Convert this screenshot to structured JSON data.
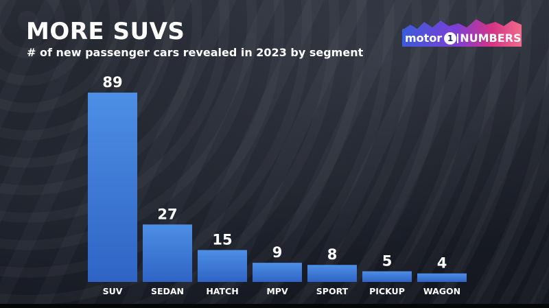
{
  "header": {
    "title": "MORE SUVS",
    "subtitle": "# of new passenger cars revealed in 2023 by segment"
  },
  "logo": {
    "left_text": "motor",
    "badge": "1",
    "right_text": "NUMBERS",
    "colors": [
      "#3b5bdb",
      "#7b3fd6",
      "#d63384",
      "#f06b8a"
    ]
  },
  "chart_data": {
    "type": "bar",
    "title": "MORE SUVS",
    "subtitle": "# of new passenger cars revealed in 2023 by segment",
    "xlabel": "",
    "ylabel": "",
    "categories": [
      "SUV",
      "SEDAN",
      "HATCH",
      "MPV",
      "SPORT",
      "PICKUP",
      "WAGON"
    ],
    "values": [
      89,
      27,
      15,
      9,
      8,
      5,
      4
    ],
    "ylim": [
      0,
      89
    ],
    "grid": false,
    "legend": "none",
    "colors": {
      "bar_top": "#4d8fe6",
      "bar_bottom": "#2f64c4",
      "label": "#ffffff"
    }
  }
}
